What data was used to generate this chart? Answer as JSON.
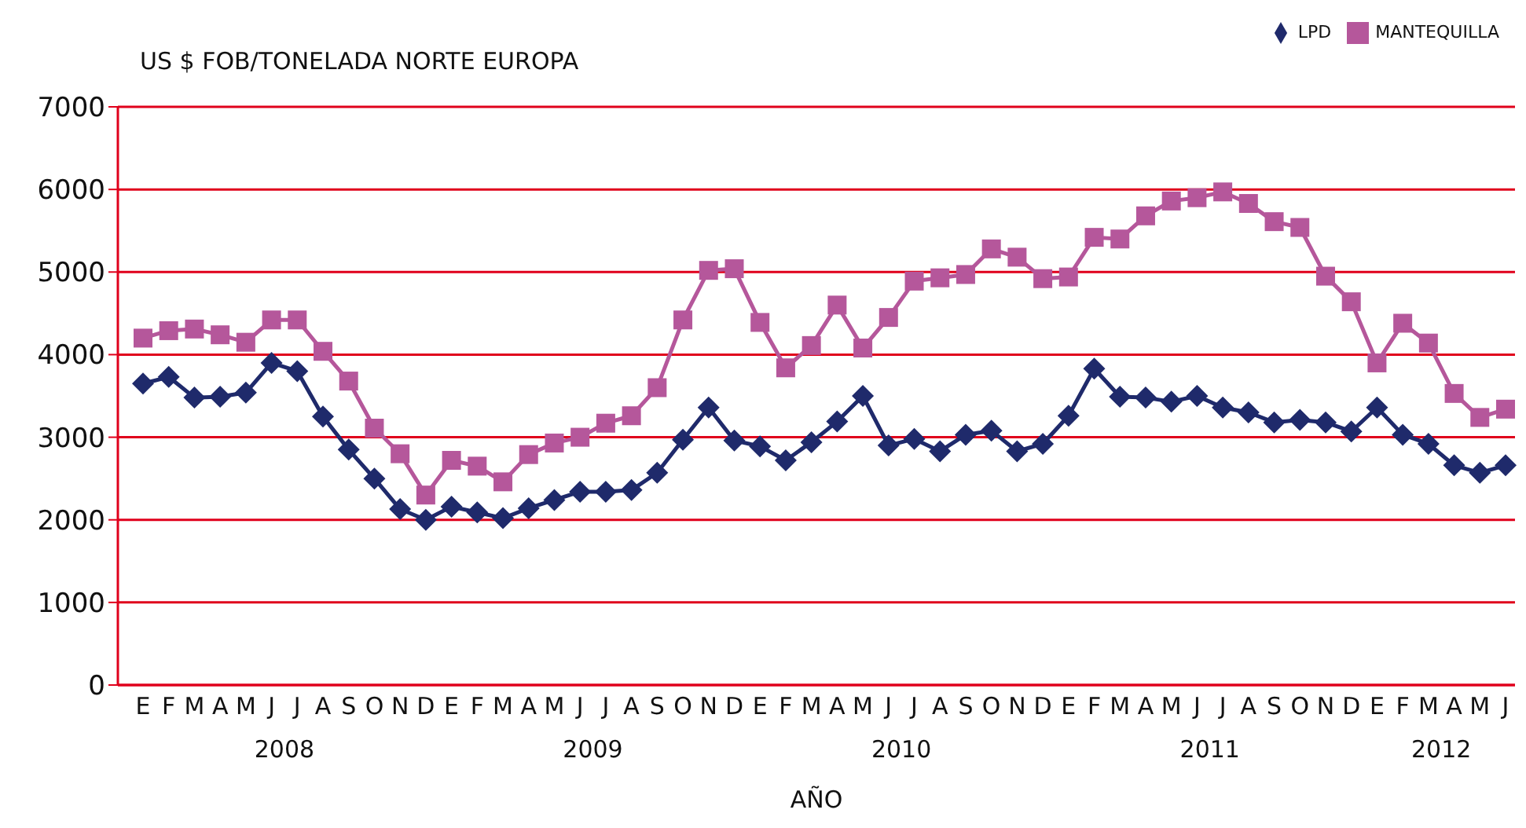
{
  "chart_data": {
    "type": "line",
    "ylabel": "US $ FOB/TONELADA NORTE EUROPA",
    "xlabel": "AÑO",
    "annotations": [
      "2008",
      "2009",
      "2010",
      "2011",
      "2012"
    ],
    "categories": [
      "E",
      "F",
      "M",
      "A",
      "M",
      "J",
      "J",
      "A",
      "S",
      "O",
      "N",
      "D",
      "E",
      "F",
      "M",
      "A",
      "M",
      "J",
      "J",
      "A",
      "S",
      "O",
      "N",
      "D",
      "E",
      "F",
      "M",
      "A",
      "M",
      "J",
      "J",
      "A",
      "S",
      "O",
      "N",
      "D",
      "E",
      "F",
      "M",
      "A",
      "M",
      "J",
      "J",
      "A",
      "S",
      "O",
      "N",
      "D",
      "E",
      "F",
      "M",
      "A",
      "M",
      "J"
    ],
    "series": [
      {
        "name": "LPD",
        "color": "#1f2a6b",
        "marker": "diamond",
        "values": [
          3650,
          3730,
          3480,
          3490,
          3540,
          3900,
          3800,
          3250,
          2850,
          2500,
          2130,
          2000,
          2160,
          2090,
          2020,
          2140,
          2240,
          2340,
          2340,
          2360,
          2570,
          2970,
          3360,
          2960,
          2890,
          2720,
          2940,
          3190,
          3500,
          2900,
          2980,
          2830,
          3030,
          3080,
          2830,
          2920,
          3260,
          3830,
          3490,
          3480,
          3430,
          3500,
          3360,
          3300,
          3180,
          3210,
          3180,
          3070,
          3360,
          3030,
          2920,
          2660,
          2570,
          2660
        ]
      },
      {
        "name": "MANTEQUILLA",
        "color": "#b5579b",
        "marker": "square",
        "values": [
          4200,
          4290,
          4310,
          4240,
          4150,
          4420,
          4420,
          4040,
          3680,
          3110,
          2800,
          2300,
          2720,
          2650,
          2460,
          2790,
          2930,
          3000,
          3170,
          3260,
          3600,
          4420,
          5020,
          5040,
          4390,
          3840,
          4110,
          4600,
          4080,
          4450,
          4890,
          4930,
          4970,
          5280,
          5180,
          4920,
          4940,
          5420,
          5400,
          5680,
          5860,
          5900,
          5970,
          5830,
          5610,
          5540,
          4950,
          4640,
          3900,
          4380,
          4140,
          3530,
          3240,
          3340
        ]
      }
    ],
    "ylim": [
      0,
      7000
    ],
    "yticks": [
      0,
      1000,
      2000,
      3000,
      4000,
      5000,
      6000,
      7000
    ],
    "grid": "y",
    "legend": "top right",
    "line_style": "solid"
  }
}
